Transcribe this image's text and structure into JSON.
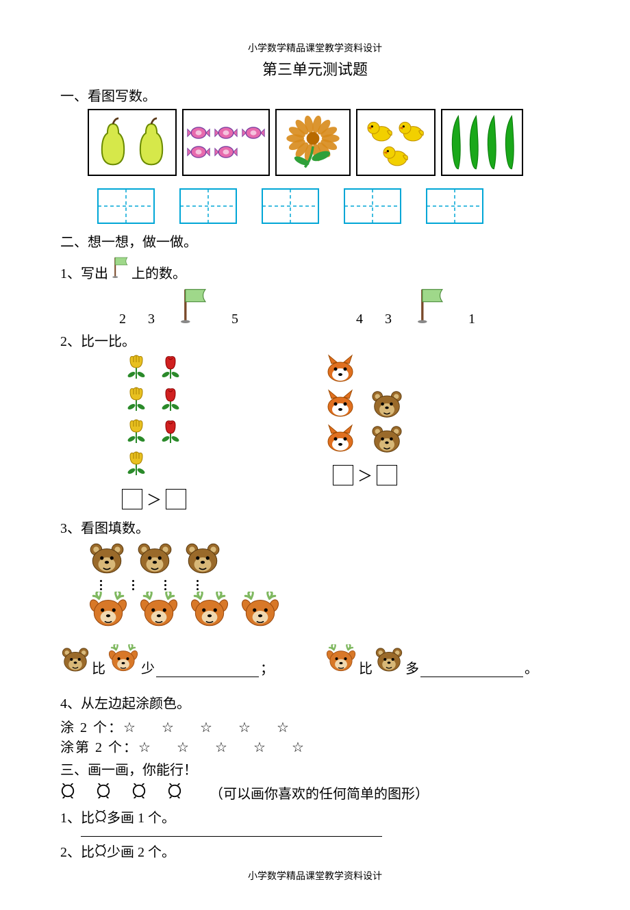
{
  "header": "小学数学精品课堂教学资料设计",
  "title": "第三单元测试题",
  "footer": "小学数学精品课堂教学资料设计",
  "colors": {
    "pear_fill": "#d6e84a",
    "pear_outline": "#6a8a00",
    "candy_pink": "#e76aad",
    "candy_purple": "#7a3fa0",
    "flower_orange": "#d88a1a",
    "flower_green": "#2fa03a",
    "chick_yellow": "#f2d000",
    "chick_outline": "#c09000",
    "cucumber": "#1aa81a",
    "grid_blue": "#00a6d6",
    "flag_green": "#9fd88a",
    "flag_pole": "#7a4a2a",
    "tulip_yellow": "#e8c020",
    "rose_red": "#d02020",
    "leaf_green": "#2a8a2a",
    "fox_orange": "#e07020",
    "bear_brown": "#9a6a2a",
    "bear_tan": "#d8b878",
    "deer_orange": "#d87828",
    "deer_antler": "#7fb860"
  },
  "s1": {
    "heading": "一、看图写数。",
    "counts": {
      "pears": 2,
      "candies": 5,
      "flowers": 1,
      "chicks": 3,
      "cucumbers": 4
    }
  },
  "s2": {
    "heading": "二、想一想，做一做。",
    "q1": {
      "label_prefix": "1、写出",
      "label_suffix": "上的数。",
      "left_nums": [
        "2",
        "3",
        "",
        "5"
      ],
      "right_nums": [
        "4",
        "3",
        "",
        "1"
      ]
    },
    "q2": {
      "label": "2、比一比。",
      "gt": "＞"
    },
    "q3": {
      "label": "3、看图填数。",
      "text_bi": "比",
      "text_shao": "少",
      "text_duo": "多",
      "semi": "；",
      "period": "。"
    },
    "q4": {
      "label": "4、从左边起涂颜色。",
      "row1_label": "涂 2 个：",
      "row2_label": "涂第 2 个：",
      "star": "☆",
      "star_count": 5
    }
  },
  "s3": {
    "heading": "三、画一画，你能行！",
    "note": "（可以画你喜欢的任何简单的图形）",
    "shape_count": 4,
    "q1": {
      "prefix": "1、比",
      "suffix": "多画 1 个。"
    },
    "q2": {
      "prefix": "2、比",
      "suffix": "少画 2 个。"
    }
  }
}
